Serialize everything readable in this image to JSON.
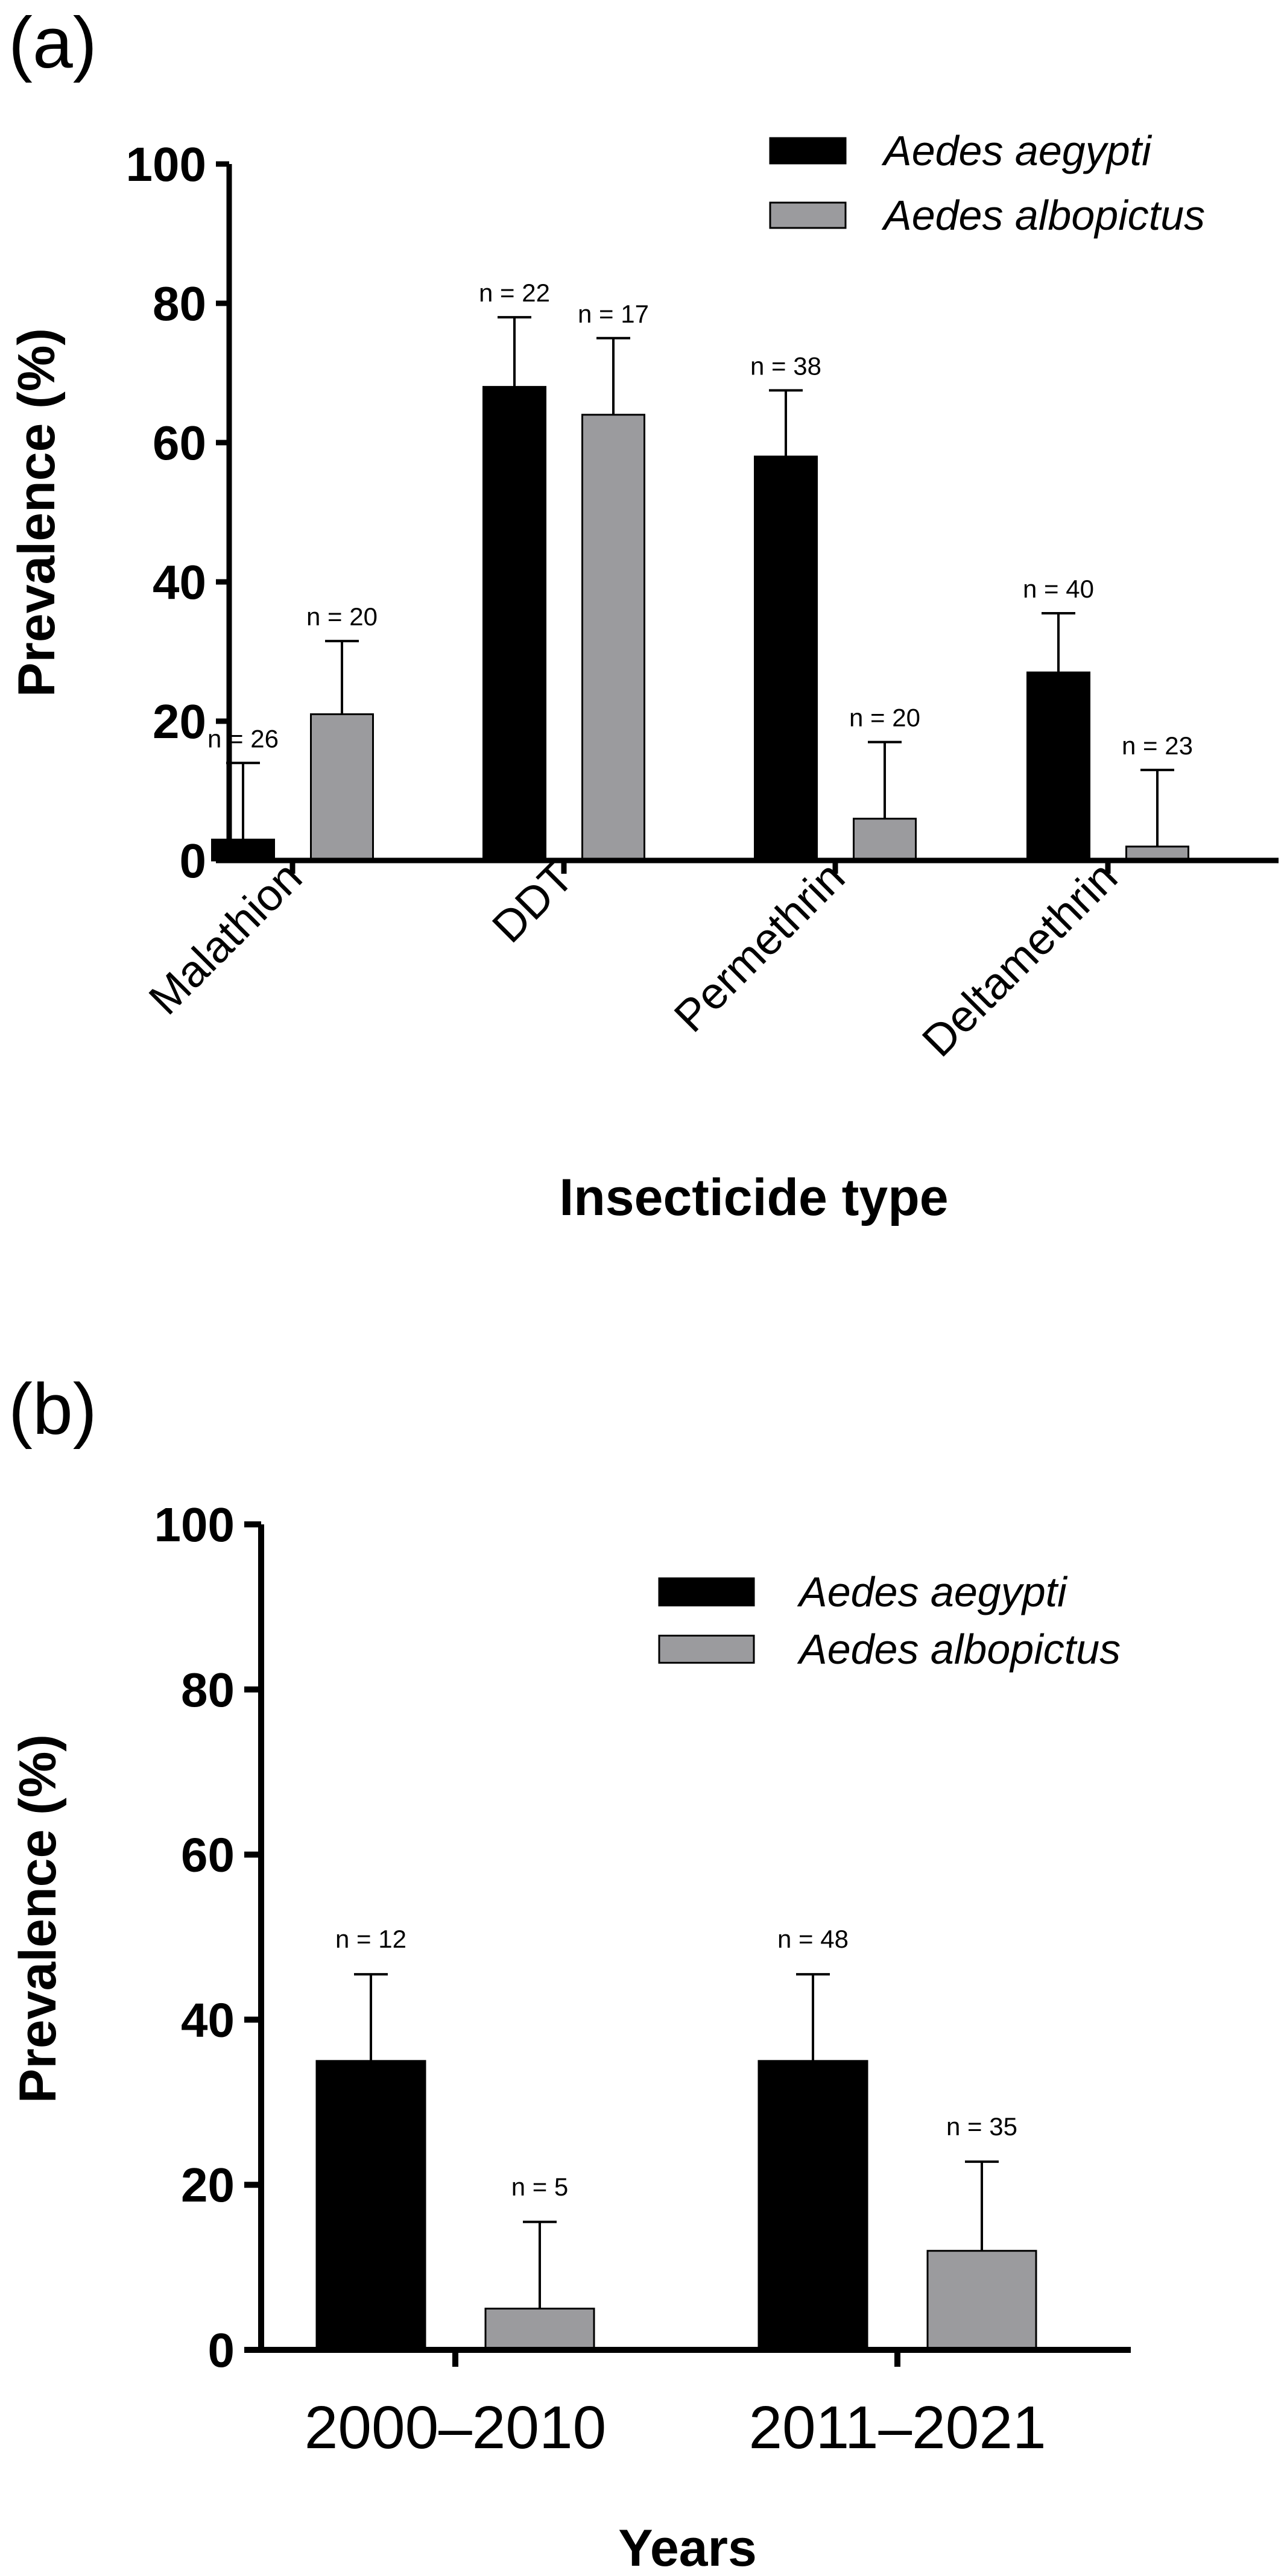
{
  "chart_data": [
    {
      "panel_label": "(a)",
      "type": "bar",
      "categories": [
        "Malathion",
        "DDT",
        "Permethrin",
        "Deltamethrin"
      ],
      "series": [
        {
          "name": "Aedes aegypti",
          "color": "#000000",
          "values": [
            3,
            68,
            58,
            27
          ],
          "errors": [
            11,
            10,
            9.5,
            8.5
          ],
          "n_labels": [
            "n = 26",
            "n = 22",
            "n = 38",
            "n = 40"
          ]
        },
        {
          "name": "Aedes albopictus",
          "color": "#9b9b9e",
          "values": [
            21,
            64,
            6,
            2
          ],
          "errors": [
            10.5,
            11,
            11,
            11
          ],
          "n_labels": [
            "n = 20",
            "n = 17",
            "n = 20",
            "n = 23"
          ]
        }
      ],
      "ylabel": "Prevalence (%)",
      "xlabel": "Insecticide type",
      "ylim": [
        0,
        100
      ],
      "yticks": [
        "0",
        "20",
        "40",
        "60",
        "80",
        "100"
      ],
      "ytick_values": [
        0,
        20,
        40,
        60,
        80,
        100
      ],
      "legend": "top-right"
    },
    {
      "panel_label": "(b)",
      "type": "bar",
      "categories": [
        "2000–2010",
        "2011–2021"
      ],
      "series": [
        {
          "name": "Aedes aegypti",
          "color": "#000000",
          "values": [
            35,
            35
          ],
          "errors": [
            10.5,
            10.5
          ],
          "n_labels": [
            "n = 12",
            "n = 48"
          ]
        },
        {
          "name": "Aedes albopictus",
          "color": "#9b9b9e",
          "values": [
            5,
            12
          ],
          "errors": [
            10.5,
            10.8
          ],
          "n_labels": [
            "n = 5",
            "n = 35"
          ]
        }
      ],
      "ylabel": "Prevalence (%)",
      "xlabel": "Years",
      "ylim": [
        0,
        100
      ],
      "yticks": [
        "0",
        "20",
        "40",
        "60",
        "80",
        "100"
      ],
      "ytick_values": [
        0,
        20,
        40,
        60,
        80,
        100
      ],
      "legend": "top-right"
    }
  ]
}
